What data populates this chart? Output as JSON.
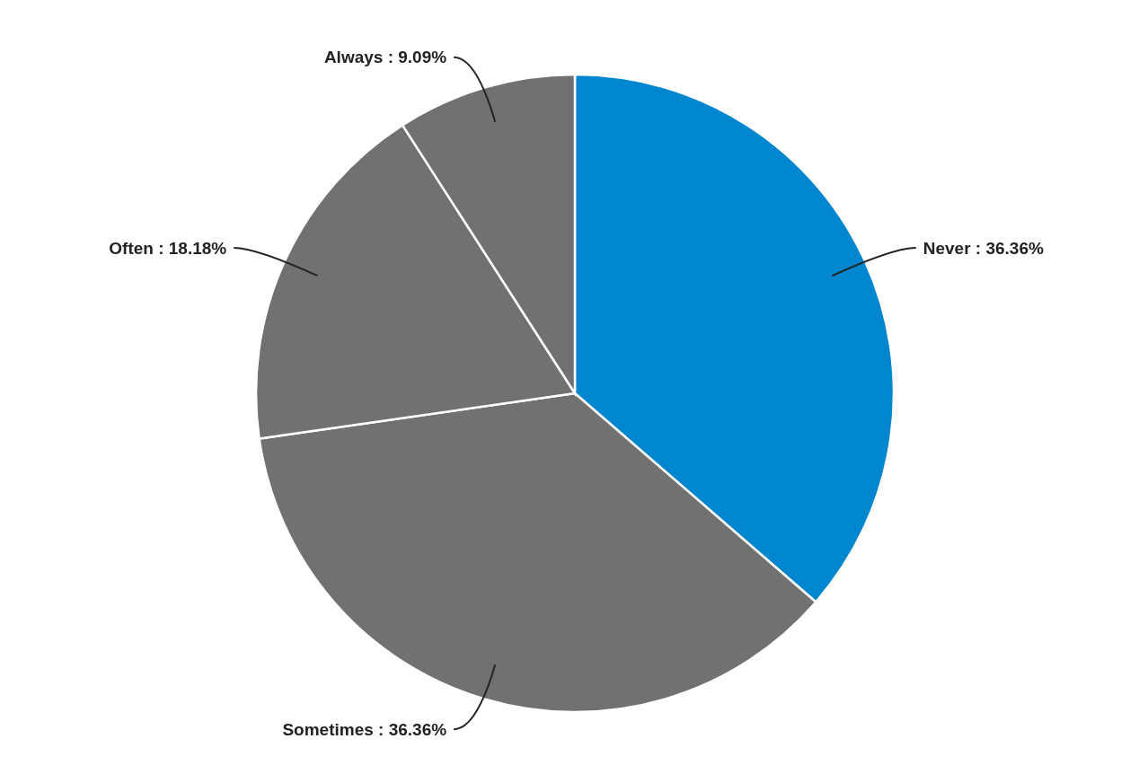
{
  "chart_data": {
    "type": "pie",
    "categories": [
      "Never",
      "Sometimes",
      "Often",
      "Always"
    ],
    "values": [
      36.36,
      36.36,
      18.18,
      9.09
    ],
    "colors": [
      "#0085cf",
      "#717171",
      "#717171",
      "#717171"
    ],
    "value_labels": [
      "36.36%",
      "36.36%",
      "18.18%",
      "9.09%"
    ]
  }
}
